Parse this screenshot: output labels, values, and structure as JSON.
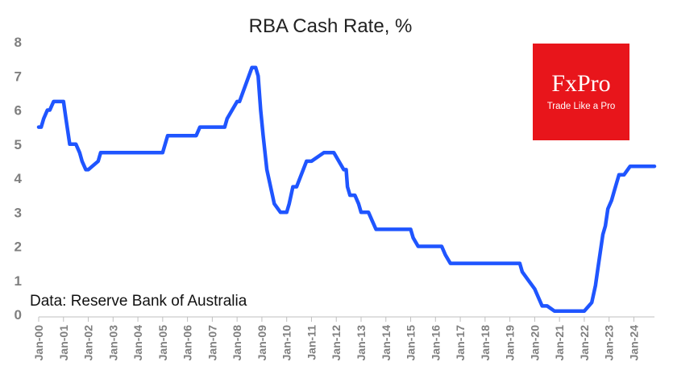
{
  "chart_data": {
    "type": "line",
    "title": "RBA Cash Rate, %",
    "note": "Data: Reserve Bank of Australia",
    "ylim": [
      0,
      8
    ],
    "yticks": [
      "0",
      "1",
      "2",
      "3",
      "4",
      "5",
      "6",
      "7",
      "8"
    ],
    "xlim": [
      2000.0,
      2024.83
    ],
    "xticks": [
      "Jan-00",
      "Jan-01",
      "Jan-02",
      "Jan-03",
      "Jan-04",
      "Jan-05",
      "Jan-06",
      "Jan-07",
      "Jan-08",
      "Jan-09",
      "Jan-10",
      "Jan-11",
      "Jan-12",
      "Jan-13",
      "Jan-14",
      "Jan-15",
      "Jan-16",
      "Jan-17",
      "Jan-18",
      "Jan-19",
      "Jan-20",
      "Jan-21",
      "Jan-22",
      "Jan-23",
      "Jan-24"
    ],
    "grid": false,
    "legend": "none",
    "line_color": "#1f55ff",
    "series": [
      {
        "x": [
          2000.0,
          2000.1,
          2000.2,
          2000.35,
          2000.45,
          2000.6,
          2000.7,
          2001.0,
          2001.1,
          2001.25,
          2001.5,
          2001.65,
          2001.75,
          2001.9,
          2002.0,
          2002.4,
          2002.5,
          2003.0,
          2004.0,
          2004.9,
          2005.0,
          2005.2,
          2006.0,
          2006.35,
          2006.5,
          2006.65,
          2006.75,
          2006.9,
          2007.0,
          2007.5,
          2007.6,
          2007.8,
          2008.0,
          2008.1,
          2008.6,
          2008.75,
          2008.85,
          2008.95,
          2009.05,
          2009.2,
          2009.5,
          2009.75,
          2009.9,
          2010.0,
          2010.1,
          2010.25,
          2010.4,
          2010.8,
          2011.0,
          2011.5,
          2011.8,
          2011.9,
          2012.3,
          2012.4,
          2012.45,
          2012.55,
          2012.75,
          2012.9,
          2013.0,
          2013.3,
          2013.45,
          2013.6,
          2013.75,
          2014.0,
          2014.5,
          2015.0,
          2015.1,
          2015.3,
          2015.45,
          2016.0,
          2016.25,
          2016.4,
          2016.6,
          2016.8,
          2017.0,
          2018.0,
          2019.0,
          2019.4,
          2019.5,
          2019.75,
          2020.0,
          2020.15,
          2020.3,
          2020.5,
          2020.8,
          2020.9,
          2021.0,
          2021.5,
          2022.0,
          2022.3,
          2022.45,
          2022.55,
          2022.65,
          2022.75,
          2022.85,
          2022.95,
          2023.1,
          2023.2,
          2023.3,
          2023.4,
          2023.6,
          2023.85,
          2024.0,
          2024.5,
          2024.83
        ],
        "y": [
          5.5,
          5.5,
          5.75,
          6.0,
          6.0,
          6.25,
          6.25,
          6.25,
          5.75,
          5.0,
          5.0,
          4.75,
          4.5,
          4.25,
          4.25,
          4.5,
          4.75,
          4.75,
          4.75,
          4.75,
          4.75,
          5.25,
          5.25,
          5.25,
          5.5,
          5.5,
          5.5,
          5.5,
          5.5,
          5.5,
          5.75,
          6.0,
          6.25,
          6.25,
          7.25,
          7.25,
          7.0,
          6.0,
          5.25,
          4.25,
          3.25,
          3.0,
          3.0,
          3.0,
          3.25,
          3.75,
          3.75,
          4.5,
          4.5,
          4.75,
          4.75,
          4.75,
          4.25,
          4.25,
          3.75,
          3.5,
          3.5,
          3.25,
          3.0,
          3.0,
          2.75,
          2.5,
          2.5,
          2.5,
          2.5,
          2.5,
          2.25,
          2.0,
          2.0,
          2.0,
          2.0,
          1.75,
          1.5,
          1.5,
          1.5,
          1.5,
          1.5,
          1.5,
          1.25,
          1.0,
          0.75,
          0.5,
          0.25,
          0.25,
          0.1,
          0.1,
          0.1,
          0.1,
          0.1,
          0.35,
          0.85,
          1.35,
          1.85,
          2.35,
          2.6,
          3.1,
          3.35,
          3.6,
          3.85,
          4.1,
          4.1,
          4.35,
          4.35,
          4.35,
          4.35
        ]
      }
    ]
  },
  "logo": {
    "brand": "FxPro",
    "tagline": "Trade Like a Pro",
    "color": "#e8151b"
  }
}
